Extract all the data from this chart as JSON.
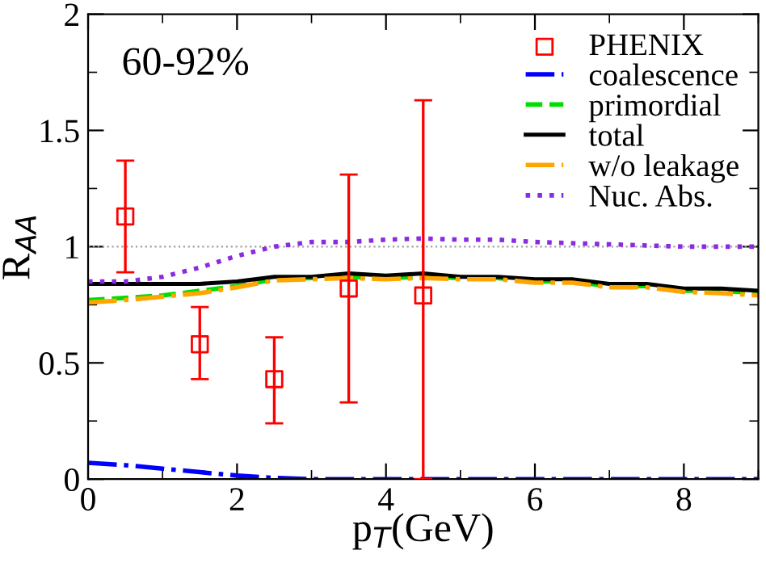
{
  "chart_data": {
    "type": "line",
    "xlabel": "p$_{T}$(GeV)",
    "ylabel": "R$_{AA}$",
    "xlim": [
      0,
      9
    ],
    "ylim": [
      0,
      2
    ],
    "xticks": [
      0,
      2,
      4,
      6,
      8
    ],
    "yticks": [
      0,
      0.5,
      1,
      1.5,
      2
    ],
    "legend": "top right",
    "grid": false,
    "annotations": [
      "60-92%"
    ],
    "ref_lines": [
      {
        "axis": "y",
        "value": 1,
        "color": "#a0a0a0",
        "line_style": "dotted"
      }
    ],
    "series": [
      {
        "name": "PHENIX",
        "type": "scatter",
        "marker": "square",
        "color": "#ff0000",
        "x": [
          0.5,
          1.5,
          2.5,
          3.5,
          4.5
        ],
        "values": [
          1.13,
          0.58,
          0.43,
          0.82,
          0.79
        ],
        "errors": [
          [
            0.89,
            1.37
          ],
          [
            0.43,
            0.74
          ],
          [
            0.24,
            0.61
          ],
          [
            0.33,
            1.31
          ],
          [
            0,
            1.63
          ]
        ]
      },
      {
        "name": "coalescence",
        "line_style": "dashdot",
        "color": "#0000ff",
        "x": [
          0,
          0.5,
          1,
          1.5,
          2,
          2.5,
          3,
          4,
          5,
          6,
          7,
          8,
          9
        ],
        "values": [
          0.07,
          0.06,
          0.045,
          0.03,
          0.015,
          0.005,
          0,
          0,
          0,
          0,
          0,
          0,
          0
        ]
      },
      {
        "name": "primordial",
        "line_style": "dashed",
        "color": "#00dd00",
        "x": [
          0,
          0.5,
          1,
          1.5,
          2,
          2.5,
          3,
          3.5,
          4,
          4.5,
          5,
          5.5,
          6,
          6.5,
          7,
          7.5,
          8,
          8.5,
          9
        ],
        "values": [
          0.77,
          0.78,
          0.79,
          0.81,
          0.83,
          0.86,
          0.865,
          0.87,
          0.865,
          0.87,
          0.865,
          0.865,
          0.85,
          0.85,
          0.83,
          0.83,
          0.81,
          0.81,
          0.8
        ]
      },
      {
        "name": "total",
        "line_style": "solid",
        "color": "#000000",
        "x": [
          0,
          0.5,
          1,
          1.5,
          2,
          2.5,
          3,
          3.5,
          4,
          4.5,
          5,
          5.5,
          6,
          6.5,
          7,
          7.5,
          8,
          8.5,
          9
        ],
        "values": [
          0.84,
          0.84,
          0.84,
          0.84,
          0.85,
          0.87,
          0.87,
          0.885,
          0.875,
          0.885,
          0.87,
          0.87,
          0.86,
          0.86,
          0.84,
          0.84,
          0.82,
          0.82,
          0.81
        ]
      },
      {
        "name": "w/o leakage",
        "line_style": "dashdot",
        "color": "#ffa500",
        "x": [
          0,
          0.5,
          1,
          1.5,
          2,
          2.5,
          3,
          3.5,
          4,
          4.5,
          5,
          5.5,
          6,
          6.5,
          7,
          7.5,
          8,
          8.5,
          9
        ],
        "values": [
          0.76,
          0.77,
          0.785,
          0.8,
          0.825,
          0.855,
          0.86,
          0.865,
          0.86,
          0.865,
          0.86,
          0.86,
          0.845,
          0.845,
          0.825,
          0.825,
          0.805,
          0.8,
          0.79
        ]
      },
      {
        "name": "Nuc. Abs.",
        "line_style": "dotted",
        "color": "#8a2be2",
        "x": [
          0,
          0.5,
          1,
          1.5,
          2,
          2.5,
          3,
          3.5,
          4,
          4.5,
          5,
          5.5,
          6,
          7,
          8,
          9
        ],
        "values": [
          0.85,
          0.85,
          0.87,
          0.91,
          0.96,
          1.0,
          1.02,
          1.02,
          1.03,
          1.035,
          1.03,
          1.03,
          1.02,
          1.01,
          1.0,
          1.0
        ]
      }
    ]
  }
}
